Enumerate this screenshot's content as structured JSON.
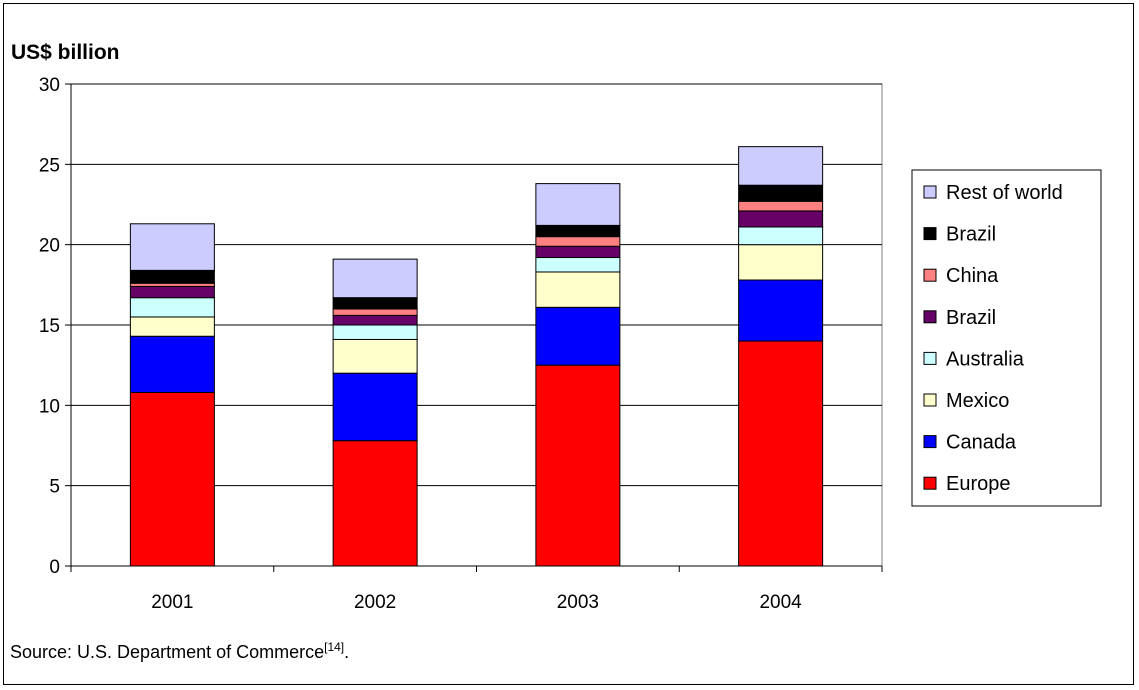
{
  "chart_data": {
    "type": "bar",
    "stacked": true,
    "ylabel": "US$ billion",
    "categories": [
      "2001",
      "2002",
      "2003",
      "2004"
    ],
    "ylim": [
      0,
      30
    ],
    "yticks": [
      0,
      5,
      10,
      15,
      20,
      25,
      30
    ],
    "grid": true,
    "legend": "right",
    "series": [
      {
        "name": "Europe",
        "color": "#ff0000",
        "values": [
          10.8,
          7.8,
          12.5,
          14.0
        ]
      },
      {
        "name": "Canada",
        "color": "#0000ff",
        "values": [
          3.5,
          4.2,
          3.6,
          3.8
        ]
      },
      {
        "name": "Mexico",
        "color": "#ffffcc",
        "values": [
          1.2,
          2.1,
          2.2,
          2.2
        ]
      },
      {
        "name": "Australia",
        "color": "#ccffff",
        "values": [
          1.2,
          0.9,
          0.9,
          1.1
        ]
      },
      {
        "name": "Brazil",
        "color": "#660066",
        "values": [
          0.7,
          0.6,
          0.7,
          1.0
        ]
      },
      {
        "name": "China",
        "color": "#ff8080",
        "values": [
          0.2,
          0.4,
          0.6,
          0.6
        ]
      },
      {
        "name": "Brazil",
        "color": "#000000",
        "values": [
          0.8,
          0.7,
          0.7,
          1.0
        ]
      },
      {
        "name": "Rest of world",
        "color": "#ccccff",
        "values": [
          2.9,
          2.4,
          2.6,
          2.4
        ]
      }
    ]
  },
  "source": {
    "text": "Source: U.S. Department of Commerce",
    "ref": "[14]",
    "end": "."
  }
}
